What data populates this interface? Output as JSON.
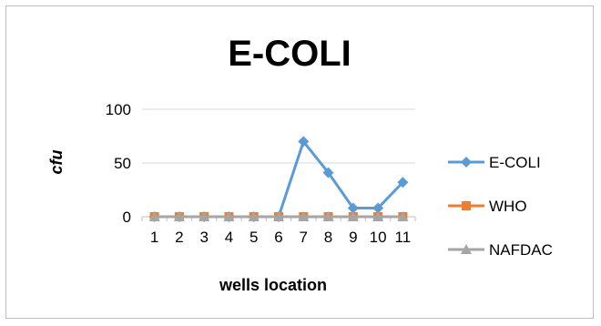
{
  "chart_data": {
    "type": "line",
    "title": "E-COLI",
    "xlabel": "wells location",
    "ylabel": "cfu",
    "categories": [
      "1",
      "2",
      "3",
      "4",
      "5",
      "6",
      "7",
      "8",
      "9",
      "10",
      "11"
    ],
    "y_ticks": [
      "0",
      "50",
      "100"
    ],
    "ylim": [
      0,
      100
    ],
    "grid": "horizontal",
    "legend_position": "right",
    "series": [
      {
        "name": "E-COLI",
        "color": "#5b9bd5",
        "marker": "diamond",
        "values": [
          0,
          0,
          0,
          0,
          0,
          0,
          70,
          41,
          8,
          8,
          32
        ]
      },
      {
        "name": "WHO",
        "color": "#ed7d31",
        "marker": "square",
        "values": [
          0,
          0,
          0,
          0,
          0,
          0,
          0,
          0,
          0,
          0,
          0
        ]
      },
      {
        "name": "NAFDAC",
        "color": "#a5a5a5",
        "marker": "triangle",
        "values": [
          0,
          0,
          0,
          0,
          0,
          0,
          0,
          0,
          0,
          0,
          0
        ]
      }
    ]
  }
}
